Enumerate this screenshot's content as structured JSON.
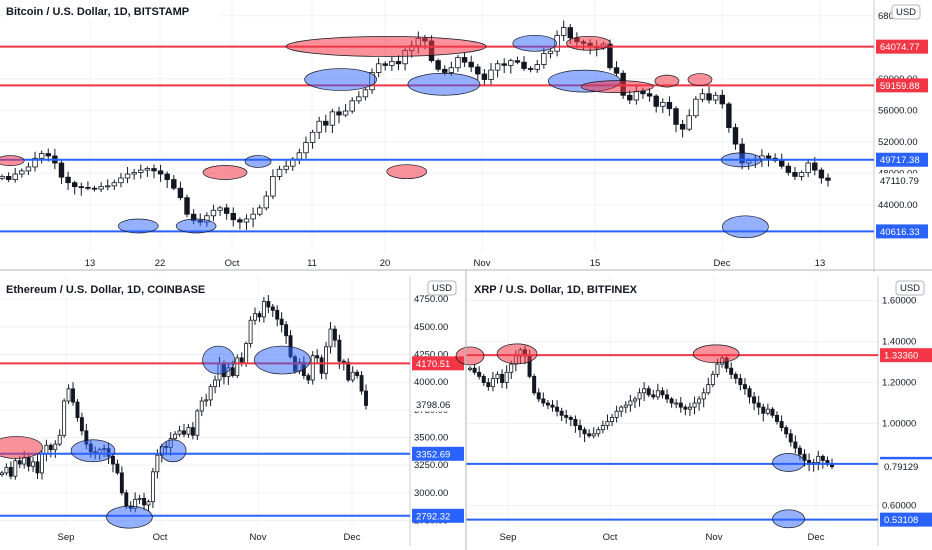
{
  "chart_data": [
    {
      "type": "candlestick",
      "title": "Bitcoin / U.S. Dollar, 1D, BITSTAMP",
      "currency": "USD",
      "ylim": [
        38000,
        70000
      ],
      "y_ticks": [
        "68000.00",
        "64000.00",
        "60000.00",
        "56000.00",
        "52000.00",
        "48000.00",
        "44000.00"
      ],
      "x_ticks": [
        "13",
        "22",
        "Oct",
        "11",
        "20",
        "Nov",
        "15",
        "Dec",
        "13"
      ],
      "price_levels": [
        {
          "value": 64074.77,
          "label": "64074.77",
          "color": "#f23645",
          "kind": "resistance"
        },
        {
          "value": 59159.88,
          "label": "59159.88",
          "color": "#f23645",
          "kind": "resistance"
        },
        {
          "value": 49717.38,
          "label": "49717.38",
          "color": "#2962ff",
          "kind": "support"
        },
        {
          "value": 40616.33,
          "label": "40616.33",
          "color": "#2962ff",
          "kind": "support"
        }
      ],
      "last_price": {
        "value": 47110.79,
        "label": "47110.79"
      },
      "close_series": [
        47600,
        47200,
        47900,
        48300,
        48800,
        49900,
        50500,
        50200,
        49300,
        47500,
        46800,
        46300,
        46200,
        46100,
        46000,
        46300,
        46400,
        46800,
        47400,
        47900,
        48100,
        48400,
        48600,
        48300,
        47900,
        47200,
        46100,
        44900,
        42800,
        42000,
        41800,
        42600,
        43300,
        43600,
        42900,
        42100,
        41800,
        42200,
        42800,
        43600,
        45100,
        47600,
        48500,
        48900,
        49800,
        50600,
        51900,
        53200,
        54600,
        54100,
        55800,
        55400,
        55900,
        57200,
        57700,
        58600,
        60800,
        61900,
        61700,
        62200,
        61900,
        63600,
        64200,
        65100,
        64800,
        62300,
        61200,
        60800,
        61400,
        62700,
        62100,
        61500,
        60600,
        59900,
        61100,
        61900,
        61700,
        62300,
        62100,
        61300,
        61200,
        61800,
        63200,
        63500,
        65500,
        66500,
        65200,
        64700,
        64500,
        64100,
        63900,
        64400,
        61400,
        60700,
        57900,
        57300,
        58400,
        58100,
        57800,
        56500,
        57000,
        56200,
        54200,
        53600,
        55300,
        57400,
        58100,
        57300,
        57900,
        56800,
        53800,
        51700,
        49300,
        49600,
        49800,
        50200,
        49900,
        49600,
        48900,
        48100,
        47600,
        48100,
        49300,
        48400,
        47400,
        47100
      ]
    },
    {
      "type": "candlestick",
      "title": "Ethereum / U.S. Dollar, 1D, COINBASE",
      "currency": "USD",
      "ylim": [
        2700,
        4960
      ],
      "y_ticks": [
        "4750.00",
        "4500.00",
        "4250.00",
        "4000.00",
        "3750.00",
        "3500.00",
        "3250.00",
        "3000.00",
        "2750.00"
      ],
      "x_ticks": [
        "Sep",
        "Oct",
        "Nov",
        "Dec"
      ],
      "price_levels": [
        {
          "value": 4170.51,
          "label": "4170.51",
          "color": "#f23645",
          "kind": "resistance"
        },
        {
          "value": 3352.69,
          "label": "3352.69",
          "color": "#2962ff",
          "kind": "support"
        },
        {
          "value": 2792.32,
          "label": "2792.32",
          "color": "#2962ff",
          "kind": "support"
        }
      ],
      "last_price": {
        "value": 3798.06,
        "label": "3798.06"
      },
      "close_series": [
        3180,
        3230,
        3150,
        3290,
        3260,
        3320,
        3240,
        3280,
        3180,
        3350,
        3430,
        3390,
        3440,
        3520,
        3830,
        3940,
        3820,
        3680,
        3560,
        3440,
        3370,
        3360,
        3390,
        3400,
        3330,
        3260,
        3180,
        3000,
        2880,
        2860,
        2940,
        2950,
        2890,
        2920,
        3190,
        3340,
        3420,
        3410,
        3490,
        3530,
        3560,
        3530,
        3590,
        3520,
        3740,
        3830,
        3840,
        3960,
        4020,
        4170,
        4050,
        4130,
        4060,
        4220,
        4170,
        4350,
        4560,
        4620,
        4590,
        4730,
        4680,
        4650,
        4570,
        4520,
        4420,
        4230,
        4100,
        4180,
        4060,
        4020,
        4240,
        4220,
        4080,
        4320,
        4480,
        4380,
        4190,
        4180,
        4020,
        4090,
        4060,
        3920,
        3790
      ]
    },
    {
      "type": "candlestick",
      "title": "XRP / U.S. Dollar, 1D, BITFINEX",
      "currency": "USD",
      "ylim": [
        0.5,
        1.72
      ],
      "y_ticks": [
        "1.60000",
        "1.40000",
        "1.20000",
        "1.00000",
        "0.80000",
        "0.60000"
      ],
      "x_ticks": [
        "Sep",
        "Oct",
        "Nov",
        "Dec"
      ],
      "price_levels": [
        {
          "value": 1.3336,
          "label": "1.33360",
          "color": "#f23645",
          "kind": "resistance"
        },
        {
          "value": 0.8033,
          "label": "0.80330",
          "color": "#2962ff",
          "kind": "support"
        },
        {
          "value": 0.53108,
          "label": "0.53108",
          "color": "#2962ff",
          "kind": "support"
        }
      ],
      "last_price": {
        "value": 0.79129,
        "label": "0.79129"
      },
      "close_series": [
        1.27,
        1.25,
        1.23,
        1.2,
        1.18,
        1.22,
        1.24,
        1.2,
        1.25,
        1.29,
        1.33,
        1.36,
        1.33,
        1.23,
        1.15,
        1.12,
        1.1,
        1.09,
        1.08,
        1.06,
        1.04,
        1.03,
        1.02,
        0.99,
        0.97,
        0.95,
        0.94,
        0.95,
        0.97,
        0.99,
        1.01,
        1.03,
        1.06,
        1.08,
        1.09,
        1.11,
        1.12,
        1.15,
        1.17,
        1.14,
        1.13,
        1.16,
        1.14,
        1.12,
        1.1,
        1.1,
        1.08,
        1.07,
        1.08,
        1.1,
        1.12,
        1.15,
        1.19,
        1.24,
        1.29,
        1.32,
        1.27,
        1.24,
        1.22,
        1.19,
        1.17,
        1.13,
        1.1,
        1.08,
        1.05,
        1.07,
        1.04,
        1.01,
        0.98,
        0.95,
        0.91,
        0.88,
        0.85,
        0.82,
        0.8,
        0.81,
        0.84,
        0.82,
        0.8,
        0.79
      ]
    }
  ]
}
